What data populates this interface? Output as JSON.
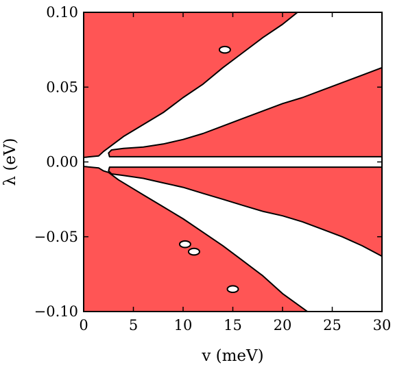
{
  "chart_data": {
    "type": "region",
    "title": "",
    "xlabel": "v (meV)",
    "ylabel": "λ (eV)",
    "xlim": [
      0,
      30
    ],
    "ylim": [
      -0.1,
      0.1
    ],
    "xticks": [
      0,
      5,
      10,
      15,
      20,
      25,
      30
    ],
    "yticks": [
      0.1,
      0.05,
      0.0,
      -0.05,
      -0.1
    ],
    "xtick_labels": [
      "0",
      "5",
      "10",
      "15",
      "20",
      "25",
      "30"
    ],
    "ytick_labels": [
      "0.10",
      "0.05",
      "0.00",
      "−0.05",
      "−0.10"
    ],
    "fill_color": "#ff5555",
    "boundary_color": "#000000",
    "regions": [
      {
        "name": "upper-left",
        "polygon": [
          [
            0,
            0.1
          ],
          [
            21.5,
            0.1
          ],
          [
            20,
            0.092
          ],
          [
            18,
            0.083
          ],
          [
            16,
            0.073
          ],
          [
            14,
            0.063
          ],
          [
            12,
            0.052
          ],
          [
            10,
            0.043
          ],
          [
            8,
            0.033
          ],
          [
            6,
            0.025
          ],
          [
            4,
            0.017
          ],
          [
            3,
            0.012
          ],
          [
            2,
            0.007
          ],
          [
            1.5,
            0.004
          ],
          [
            0,
            0.003
          ]
        ]
      },
      {
        "name": "upper-right",
        "polygon": [
          [
            30,
            0.063
          ],
          [
            28,
            0.058
          ],
          [
            26,
            0.053
          ],
          [
            24,
            0.048
          ],
          [
            22,
            0.043
          ],
          [
            20,
            0.039
          ],
          [
            18,
            0.034
          ],
          [
            16,
            0.029
          ],
          [
            14,
            0.024
          ],
          [
            12,
            0.019
          ],
          [
            10,
            0.015
          ],
          [
            8,
            0.012
          ],
          [
            6,
            0.01
          ],
          [
            4,
            0.009
          ],
          [
            2.8,
            0.008
          ],
          [
            2.5,
            0.006
          ],
          [
            2.6,
            0.0035
          ],
          [
            30,
            0.0035
          ]
        ]
      },
      {
        "name": "lower-left",
        "polygon": [
          [
            0,
            -0.003
          ],
          [
            1.5,
            -0.004
          ],
          [
            2,
            -0.006
          ],
          [
            2.5,
            -0.007
          ],
          [
            3.5,
            -0.012
          ],
          [
            5,
            -0.018
          ],
          [
            6,
            -0.022
          ],
          [
            8,
            -0.03
          ],
          [
            10,
            -0.038
          ],
          [
            12,
            -0.047
          ],
          [
            14,
            -0.056
          ],
          [
            16,
            -0.066
          ],
          [
            18,
            -0.076
          ],
          [
            20,
            -0.088
          ],
          [
            22.5,
            -0.1
          ],
          [
            0,
            -0.1
          ]
        ]
      },
      {
        "name": "lower-right",
        "polygon": [
          [
            2.6,
            -0.0035
          ],
          [
            30,
            -0.0035
          ],
          [
            30,
            -0.063
          ],
          [
            28,
            -0.056
          ],
          [
            26,
            -0.05
          ],
          [
            24,
            -0.045
          ],
          [
            22,
            -0.04
          ],
          [
            20,
            -0.036
          ],
          [
            18,
            -0.033
          ],
          [
            16,
            -0.029
          ],
          [
            14,
            -0.025
          ],
          [
            12,
            -0.021
          ],
          [
            10,
            -0.017
          ],
          [
            8,
            -0.014
          ],
          [
            6,
            -0.011
          ],
          [
            4,
            -0.009
          ],
          [
            2.8,
            -0.008
          ],
          [
            2.5,
            -0.006
          ]
        ]
      }
    ],
    "holes": [
      {
        "name": "hole-1",
        "center": [
          14.2,
          0.075
        ],
        "rx": 0.55,
        "ry": 0.0022
      },
      {
        "name": "hole-2",
        "center": [
          10.2,
          -0.055
        ],
        "rx": 0.55,
        "ry": 0.0022
      },
      {
        "name": "hole-3",
        "center": [
          11.1,
          -0.06
        ],
        "rx": 0.55,
        "ry": 0.0022
      },
      {
        "name": "hole-4",
        "center": [
          15.0,
          -0.085
        ],
        "rx": 0.55,
        "ry": 0.0022
      }
    ],
    "grid": false
  }
}
